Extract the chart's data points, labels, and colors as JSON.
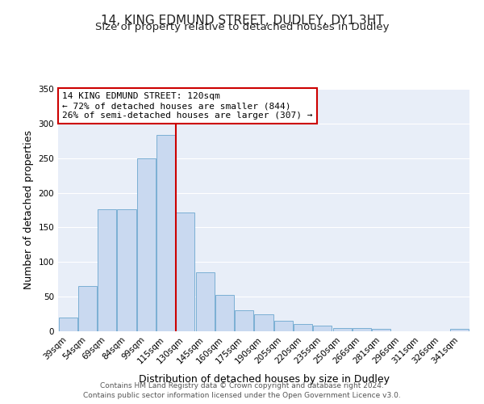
{
  "title": "14, KING EDMUND STREET, DUDLEY, DY1 3HT",
  "subtitle": "Size of property relative to detached houses in Dudley",
  "xlabel": "Distribution of detached houses by size in Dudley",
  "ylabel": "Number of detached properties",
  "bar_labels": [
    "39sqm",
    "54sqm",
    "69sqm",
    "84sqm",
    "99sqm",
    "115sqm",
    "130sqm",
    "145sqm",
    "160sqm",
    "175sqm",
    "190sqm",
    "205sqm",
    "220sqm",
    "235sqm",
    "250sqm",
    "266sqm",
    "281sqm",
    "296sqm",
    "311sqm",
    "326sqm",
    "341sqm"
  ],
  "bar_values": [
    20,
    65,
    176,
    176,
    250,
    283,
    171,
    85,
    52,
    30,
    24,
    15,
    10,
    8,
    5,
    5,
    3,
    0,
    0,
    0,
    3
  ],
  "bar_color": "#c9d9f0",
  "bar_edge_color": "#7bafd4",
  "vline_index": 5,
  "marker_label": "14 KING EDMUND STREET: 120sqm",
  "annotation_line1": "← 72% of detached houses are smaller (844)",
  "annotation_line2": "26% of semi-detached houses are larger (307) →",
  "annotation_box_color": "#ffffff",
  "annotation_box_edge_color": "#cc0000",
  "vline_color": "#cc0000",
  "ylim": [
    0,
    350
  ],
  "yticks": [
    0,
    50,
    100,
    150,
    200,
    250,
    300,
    350
  ],
  "background_color": "#ffffff",
  "axes_bg_color": "#e8eef8",
  "grid_color": "#ffffff",
  "footer_line1": "Contains HM Land Registry data © Crown copyright and database right 2024.",
  "footer_line2": "Contains public sector information licensed under the Open Government Licence v3.0.",
  "title_fontsize": 11,
  "subtitle_fontsize": 9.5,
  "axis_label_fontsize": 9,
  "tick_fontsize": 7.5,
  "annotation_fontsize": 8,
  "footer_fontsize": 6.5
}
